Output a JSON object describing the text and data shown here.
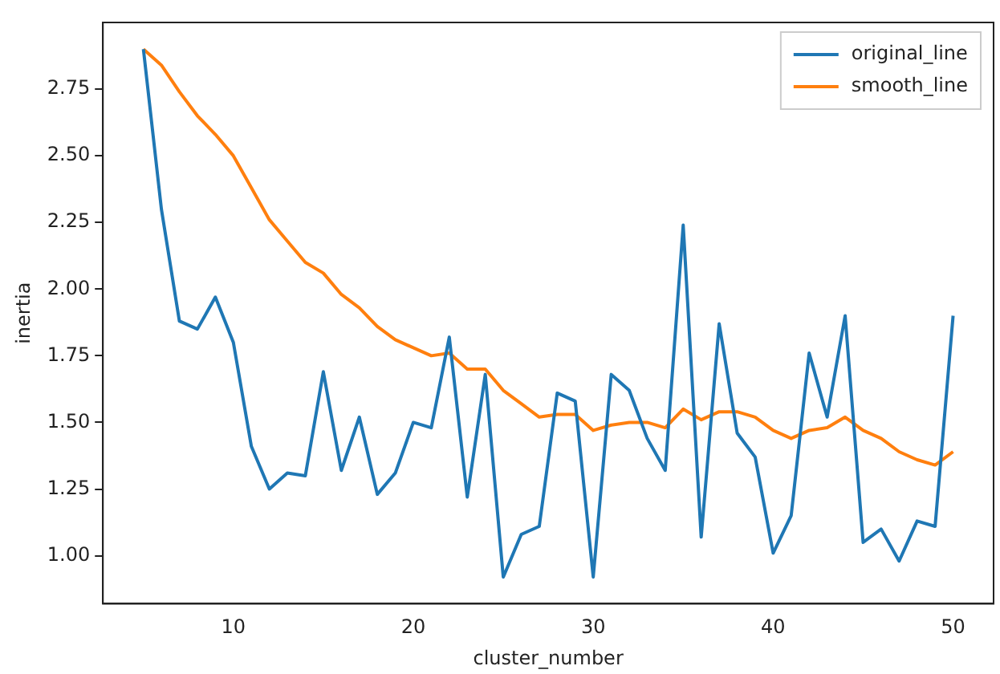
{
  "chart_data": {
    "type": "line",
    "xlabel": "cluster_number",
    "ylabel": "inertia",
    "x": [
      5,
      6,
      7,
      8,
      9,
      10,
      11,
      12,
      13,
      14,
      15,
      16,
      17,
      18,
      19,
      20,
      21,
      22,
      23,
      24,
      25,
      26,
      27,
      28,
      29,
      30,
      31,
      32,
      33,
      34,
      35,
      36,
      37,
      38,
      39,
      40,
      41,
      42,
      43,
      44,
      45,
      46,
      47,
      48,
      49,
      50
    ],
    "series": [
      {
        "name": "original_line",
        "color": "#1f77b4",
        "values": [
          2.9,
          2.3,
          1.88,
          1.85,
          1.97,
          1.8,
          1.41,
          1.25,
          1.31,
          1.3,
          1.69,
          1.32,
          1.52,
          1.23,
          1.31,
          1.5,
          1.48,
          1.82,
          1.22,
          1.68,
          0.92,
          1.08,
          1.11,
          1.61,
          1.58,
          0.92,
          1.68,
          1.62,
          1.44,
          1.32,
          2.24,
          1.07,
          1.87,
          1.46,
          1.37,
          1.01,
          1.15,
          1.76,
          1.52,
          1.9,
          1.05,
          1.1,
          0.98,
          1.13,
          1.11,
          1.9
        ]
      },
      {
        "name": "smooth_line",
        "color": "#ff7f0e",
        "values": [
          2.9,
          2.84,
          2.74,
          2.65,
          2.58,
          2.5,
          2.38,
          2.26,
          2.18,
          2.1,
          2.06,
          1.98,
          1.93,
          1.86,
          1.81,
          1.78,
          1.75,
          1.76,
          1.7,
          1.7,
          1.62,
          1.57,
          1.52,
          1.53,
          1.53,
          1.47,
          1.49,
          1.5,
          1.5,
          1.48,
          1.55,
          1.51,
          1.54,
          1.54,
          1.52,
          1.47,
          1.44,
          1.47,
          1.48,
          1.52,
          1.47,
          1.44,
          1.39,
          1.36,
          1.34,
          1.39
        ]
      }
    ],
    "xlim": [
      2.75,
      52.25
    ],
    "xticks": [
      10,
      20,
      30,
      40,
      50
    ],
    "ylim": [
      0.82,
      3.0
    ],
    "yticks": [
      {
        "value": 1,
        "label": "1.00"
      },
      {
        "value": 1.25,
        "label": "1.25"
      },
      {
        "value": 1.5,
        "label": "1.50"
      },
      {
        "value": 1.75,
        "label": "1.75"
      },
      {
        "value": 2,
        "label": "2.00"
      },
      {
        "value": 2.25,
        "label": "2.25"
      },
      {
        "value": 2.5,
        "label": "2.50"
      },
      {
        "value": 2.75,
        "label": "2.75"
      }
    ],
    "grid": false,
    "legend": "top right",
    "marker": "none",
    "line_style": "solid"
  }
}
